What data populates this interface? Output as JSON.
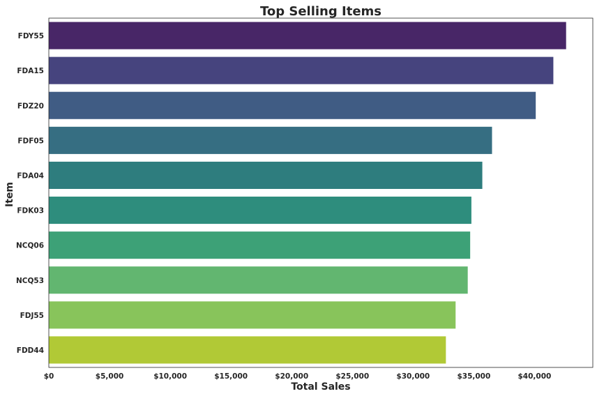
{
  "chart_data": {
    "type": "bar",
    "orientation": "horizontal",
    "title": "Top Selling Items",
    "xlabel": "Total Sales",
    "ylabel": "Item",
    "categories": [
      "FDY55",
      "FDA15",
      "FDZ20",
      "FDF05",
      "FDA04",
      "FDK03",
      "NCQ06",
      "NCQ53",
      "FDJ55",
      "FDD44"
    ],
    "values": [
      42600,
      41550,
      40100,
      36500,
      35700,
      34800,
      34700,
      34500,
      33500,
      32700
    ],
    "xlim": [
      0,
      44800
    ],
    "xticks": [
      0,
      5000,
      10000,
      15000,
      20000,
      25000,
      30000,
      35000,
      40000
    ],
    "xtick_labels": [
      "$0",
      "$5,000",
      "$10,000",
      "$15,000",
      "$20,000",
      "$25,000",
      "$30,000",
      "$35,000",
      "$40,000"
    ],
    "grid": false,
    "palette": "viridis",
    "colors": [
      "#482667",
      "#46447e",
      "#405c84",
      "#366e82",
      "#2e7d7e",
      "#2e8d7d",
      "#3da177",
      "#62b670",
      "#88c45b",
      "#b1c936"
    ]
  }
}
